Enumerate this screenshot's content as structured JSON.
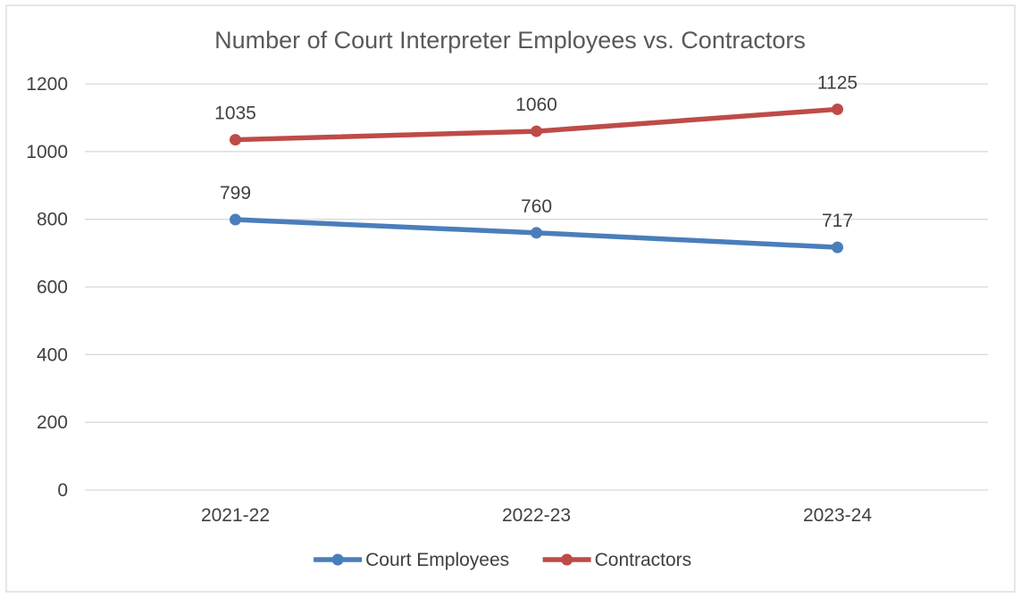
{
  "chart_data": {
    "type": "line",
    "title": "Number of Court Interpreter Employees vs. Contractors",
    "categories": [
      "2021-22",
      "2022-23",
      "2023-24"
    ],
    "series": [
      {
        "name": "Court Employees",
        "values": [
          799,
          760,
          717
        ],
        "color": "#4a7ebb"
      },
      {
        "name": "Contractors",
        "values": [
          1035,
          1060,
          1125
        ],
        "color": "#be4b48"
      }
    ],
    "yticks": [
      0,
      200,
      400,
      600,
      800,
      1000,
      1200
    ],
    "ylim": [
      0,
      1200
    ],
    "xlabel": "",
    "ylabel": "",
    "grid": true,
    "legend": "bottom"
  }
}
